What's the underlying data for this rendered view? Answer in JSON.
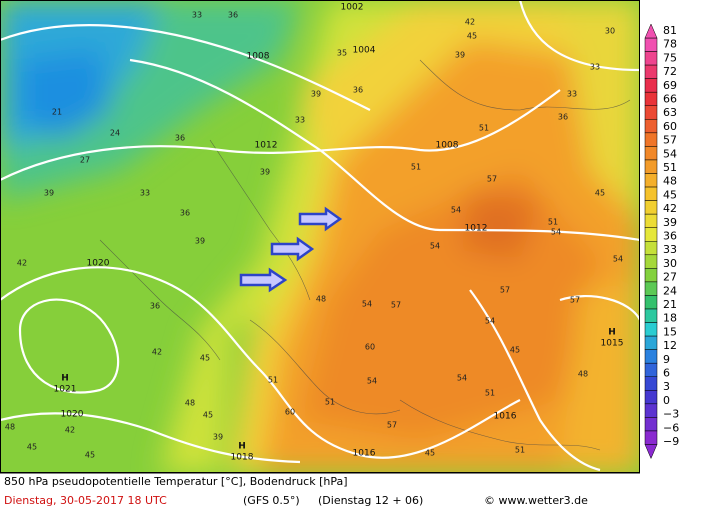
{
  "map": {
    "isobar_labels": [
      "1002",
      "1004",
      "1008",
      "1012",
      "1008",
      "1012",
      "1020",
      "1020",
      "1016",
      "1016"
    ],
    "highs": [
      {
        "symbol": "H",
        "pressure": "1021"
      },
      {
        "symbol": "H",
        "pressure": "1018"
      },
      {
        "symbol": "H",
        "pressure": "1015"
      }
    ],
    "temperature_labels": [
      "36",
      "33",
      "36",
      "35",
      "39",
      "33",
      "21",
      "27",
      "24",
      "39",
      "33",
      "36",
      "42",
      "36",
      "42",
      "45",
      "48",
      "45",
      "39",
      "42",
      "48",
      "45",
      "45",
      "39",
      "36",
      "39",
      "48",
      "54",
      "57",
      "54",
      "57",
      "51",
      "54",
      "45",
      "54",
      "57",
      "54",
      "57",
      "45",
      "48",
      "54",
      "51",
      "57",
      "51",
      "60",
      "60",
      "54",
      "51",
      "30",
      "33",
      "33",
      "36",
      "45",
      "42",
      "39",
      "51",
      "51",
      "54",
      "45",
      "51"
    ]
  },
  "colorbar": {
    "labels": [
      "81",
      "78",
      "75",
      "72",
      "69",
      "66",
      "63",
      "60",
      "57",
      "54",
      "51",
      "48",
      "45",
      "42",
      "39",
      "36",
      "33",
      "30",
      "27",
      "24",
      "21",
      "18",
      "15",
      "12",
      "9",
      "6",
      "3",
      "0",
      "−3",
      "−6",
      "−9"
    ]
  },
  "footer": {
    "title": "850 hPa pseudopotentielle Temperatur [°C], Bodendruck [hPa]",
    "date": "Dienstag, 30-05-2017  18 UTC",
    "model": "(GFS 0.5°)",
    "run": "(Dienstag 12 + 06)",
    "credit": "© www.wetter3.de"
  }
}
